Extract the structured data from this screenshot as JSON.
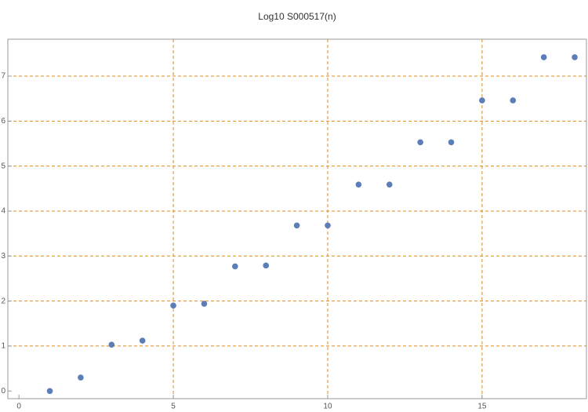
{
  "chart_data": {
    "type": "scatter",
    "title": "Log10 S000517(n)",
    "x": [
      1,
      2,
      3,
      4,
      5,
      6,
      7,
      8,
      9,
      10,
      11,
      12,
      13,
      14,
      15,
      16,
      17,
      18
    ],
    "series": [
      {
        "color": "#5b7db8",
        "values": [
          0,
          0.3,
          1.03,
          1.12,
          1.9,
          1.94,
          2.77,
          2.79,
          3.68,
          3.68,
          4.59,
          4.59,
          5.53,
          5.53,
          6.46,
          6.46,
          7.42,
          7.42
        ]
      }
    ],
    "xlim": [
      -0.36,
      18.38
    ],
    "ylim": [
      -0.17,
      7.82
    ],
    "xticks": [
      0,
      5,
      10,
      15
    ],
    "yticks": [
      0,
      1,
      2,
      3,
      4,
      5,
      6,
      7
    ],
    "xgrid": [
      5,
      10,
      15
    ],
    "ygrid": [
      1,
      2,
      3,
      4,
      5,
      6,
      7
    ],
    "grid_color": "#e08a1e"
  }
}
